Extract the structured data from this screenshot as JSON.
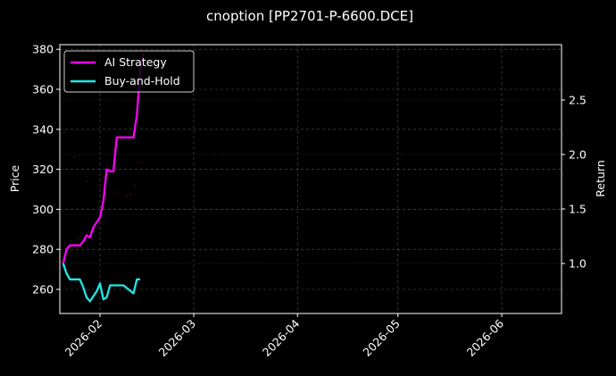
{
  "chart_data": {
    "type": "line",
    "title": "cnoption [PP2701-P-6600.DCE]",
    "xlabel": "",
    "ylabel": "Price",
    "y2label": "Return",
    "ylim": [
      248,
      382
    ],
    "y2lim": [
      0.55,
      2.99
    ],
    "xlim": [
      "2026-01-21",
      "2026-06-19"
    ],
    "x_ticks": [
      "2026-02",
      "2026-03",
      "2026-04",
      "2026-05",
      "2026-06"
    ],
    "y_ticks": [
      260,
      280,
      300,
      320,
      340,
      360,
      380
    ],
    "y2_ticks": [
      "1.0",
      "1.5",
      "2.0",
      "2.5"
    ],
    "grid": true,
    "legend_position": "upper left",
    "background": "#000000",
    "series": [
      {
        "name": "AI Strategy",
        "axis": "price",
        "color": "#ff00ff",
        "x": [
          "2026-01-21",
          "2026-01-22",
          "2026-01-23",
          "2026-01-24",
          "2026-01-26",
          "2026-01-27",
          "2026-01-28",
          "2026-01-29",
          "2026-01-30",
          "2026-02-01",
          "2026-02-02",
          "2026-02-03",
          "2026-02-04",
          "2026-02-05",
          "2026-02-06",
          "2026-02-08",
          "2026-02-11",
          "2026-02-12",
          "2026-02-13",
          "2026-02-14"
        ],
        "values": [
          273,
          280,
          282,
          282,
          282,
          284,
          287,
          286,
          291,
          296,
          304,
          320,
          319,
          319,
          336,
          336,
          336,
          347,
          369,
          378
        ]
      },
      {
        "name": "Buy-and-Hold",
        "axis": "price",
        "color": "#22e5e5",
        "x": [
          "2026-01-21",
          "2026-01-22",
          "2026-01-23",
          "2026-01-24",
          "2026-01-26",
          "2026-01-27",
          "2026-01-28",
          "2026-01-29",
          "2026-01-31",
          "2026-02-01",
          "2026-02-02",
          "2026-02-03",
          "2026-02-04",
          "2026-02-06",
          "2026-02-08",
          "2026-02-11",
          "2026-02-12",
          "2026-02-13"
        ],
        "values": [
          273,
          268,
          265,
          265,
          265,
          261,
          256,
          254,
          259,
          263,
          255,
          256,
          262,
          262,
          262,
          258,
          265,
          265
        ]
      }
    ],
    "scatter_note": "faint dark-red point markers scattered near the lines (approximate)"
  },
  "legend": {
    "items": [
      {
        "label": "AI Strategy",
        "color": "#ff00ff"
      },
      {
        "label": "Buy-and-Hold",
        "color": "#22e5e5"
      }
    ]
  },
  "axes": {
    "left_label": "Price",
    "right_label": "Return"
  }
}
